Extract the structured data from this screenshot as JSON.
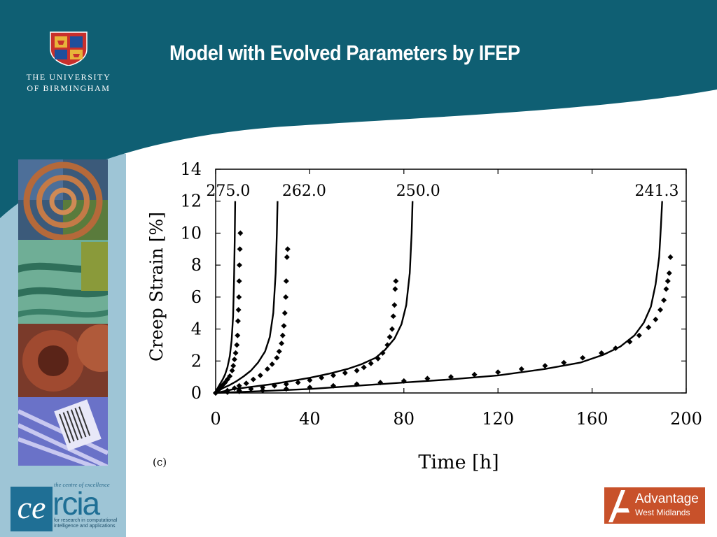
{
  "slide": {
    "title": "Model with Evolved Parameters by IFEP",
    "university_line1": "THE UNIVERSITY",
    "university_line2": "OF BIRMINGHAM",
    "cercia_tagline": "the centre of excellence",
    "cercia_name": "cercia",
    "cercia_sub1": "for research in computational",
    "cercia_sub2": "intelligence and applications",
    "advantage_line1": "Advantage",
    "advantage_line2": "West Midlands",
    "colors": {
      "header": "#0f5f73",
      "sidebar": "#9ec5d6",
      "cercia": "#1f6f95",
      "advantage": "#c8512a"
    }
  },
  "chart_data": {
    "type": "line",
    "panel_label": "(c)",
    "title": "",
    "xlabel": "Time [h]",
    "ylabel": "Creep Strain [%]",
    "xlim": [
      0,
      200
    ],
    "ylim": [
      0,
      14
    ],
    "xticks": [
      0,
      40,
      80,
      120,
      160,
      200
    ],
    "yticks": [
      0,
      2,
      4,
      6,
      8,
      10,
      12,
      14
    ],
    "grid": false,
    "legend": "none",
    "marker_style": "diamond",
    "series": [
      {
        "name": "275.0",
        "model": {
          "x": [
            0,
            1,
            2,
            3,
            4,
            5,
            6,
            6.8,
            7.4,
            7.8,
            8.1,
            8.3
          ],
          "y": [
            0,
            0.35,
            0.6,
            0.85,
            1.15,
            1.6,
            2.3,
            3.3,
            4.8,
            7,
            9.5,
            12
          ]
        },
        "experiment": {
          "x": [
            0,
            1,
            2,
            3,
            4,
            5,
            6,
            7,
            7.5,
            8,
            8.5,
            9,
            9.3,
            9.5,
            9.7,
            9.9,
            10,
            10.1,
            10.3,
            10.5
          ],
          "y": [
            0,
            0.2,
            0.35,
            0.5,
            0.65,
            0.85,
            1.05,
            1.4,
            1.7,
            2.1,
            2.5,
            3,
            3.6,
            4.5,
            5.2,
            6,
            7,
            8,
            9,
            10
          ]
        }
      },
      {
        "name": "262.0",
        "model": {
          "x": [
            0,
            3,
            6,
            9,
            12,
            15,
            18,
            21,
            23,
            24.5,
            25.5,
            26,
            26.3
          ],
          "y": [
            0,
            0.3,
            0.5,
            0.75,
            1.05,
            1.4,
            1.9,
            2.6,
            3.5,
            5,
            7.5,
            10,
            12
          ]
        },
        "experiment": {
          "x": [
            0,
            5,
            8,
            10,
            13,
            16,
            19,
            22,
            24,
            26,
            27,
            28,
            28.5,
            29,
            29.4,
            29.8,
            30,
            30.3,
            30.6
          ],
          "y": [
            0,
            0.15,
            0.3,
            0.45,
            0.6,
            0.85,
            1.1,
            1.5,
            1.8,
            2.2,
            2.6,
            3.1,
            3.6,
            4.2,
            5,
            6,
            7,
            8.5,
            9
          ]
        }
      },
      {
        "name": "250.0",
        "model": {
          "x": [
            0,
            8,
            16,
            24,
            32,
            40,
            48,
            56,
            62,
            68,
            72,
            76,
            79,
            81,
            82.5,
            83.3,
            83.7
          ],
          "y": [
            0,
            0.25,
            0.4,
            0.55,
            0.75,
            0.95,
            1.2,
            1.5,
            1.8,
            2.2,
            2.7,
            3.4,
            4.3,
            5.5,
            7.5,
            10,
            12
          ]
        },
        "experiment": {
          "x": [
            5,
            10,
            15,
            20,
            25,
            30,
            35,
            40,
            45,
            50,
            55,
            60,
            63,
            66,
            69,
            71,
            73,
            74,
            75,
            75.5,
            76,
            76.3,
            76.6
          ],
          "y": [
            0.05,
            0.15,
            0.25,
            0.35,
            0.45,
            0.55,
            0.65,
            0.8,
            0.95,
            1.1,
            1.25,
            1.4,
            1.6,
            1.85,
            2.15,
            2.5,
            3,
            3.5,
            4,
            4.8,
            5.5,
            6.5,
            7
          ]
        }
      },
      {
        "name": "241.3",
        "model": {
          "x": [
            0,
            20,
            40,
            60,
            80,
            100,
            120,
            140,
            155,
            165,
            172,
            178,
            182,
            185,
            187,
            188.5,
            189.3,
            189.8
          ],
          "y": [
            0,
            0.12,
            0.25,
            0.45,
            0.65,
            0.85,
            1.1,
            1.5,
            1.9,
            2.4,
            2.9,
            3.6,
            4.4,
            5.4,
            6.8,
            8.5,
            10.5,
            12
          ]
        },
        "experiment": {
          "x": [
            10,
            20,
            30,
            40,
            50,
            60,
            70,
            80,
            90,
            100,
            110,
            120,
            130,
            140,
            148,
            156,
            164,
            170,
            176,
            180,
            184,
            187,
            189,
            190.5,
            191.5,
            192.2,
            192.8,
            193.3
          ],
          "y": [
            0.1,
            0.15,
            0.25,
            0.35,
            0.45,
            0.55,
            0.65,
            0.75,
            0.9,
            1,
            1.15,
            1.3,
            1.5,
            1.7,
            1.9,
            2.2,
            2.5,
            2.8,
            3.2,
            3.6,
            4.1,
            4.6,
            5.2,
            5.8,
            6.5,
            7,
            7.5,
            8.5
          ]
        }
      }
    ]
  }
}
